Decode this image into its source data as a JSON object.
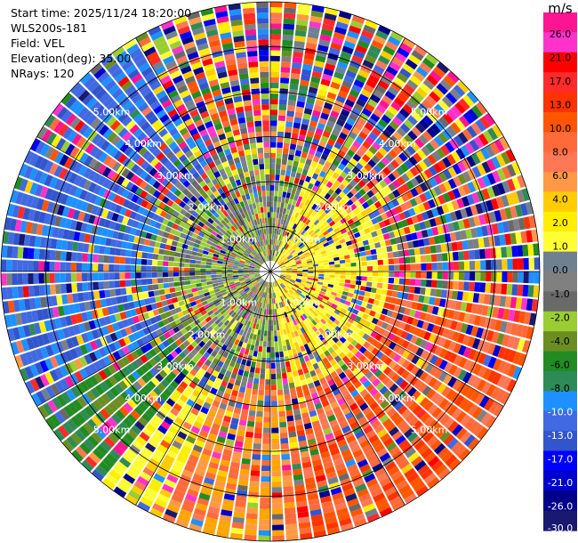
{
  "header": {
    "start_time": "Start time: 2025/11/24 18:20:00",
    "instrument": "WLS200s-181",
    "field": "Field: VEL",
    "elevation": "Elevation(deg): 35.00",
    "nrays": "NRays: 120"
  },
  "chart_data": {
    "type": "heatmap",
    "projection": "polar PPI",
    "field": "VEL",
    "nrays": 120,
    "range_rings_km": [
      1.0,
      2.0,
      3.0,
      4.0,
      5.0,
      6.0
    ],
    "ring_labels": [
      "1.00km",
      "2.00km",
      "3.00km",
      "4.00km",
      "5.00km"
    ],
    "colorbar": {
      "unit": "m/s",
      "tick_labels": [
        "26.0",
        "21.0",
        "17.0",
        "13.0",
        "10.0",
        "8.0",
        "6.0",
        "4.0",
        "2.0",
        "1.0",
        "0.0",
        "-1.0",
        "-2.0",
        "-4.0",
        "-6.0",
        "-8.0",
        "-10.0",
        "-13.0",
        "-17.0",
        "-21.0",
        "-26.0",
        "-30.0"
      ],
      "colors": [
        "#ff1493",
        "#ff33cc",
        "#ff0000",
        "#ff2a2a",
        "#ff3300",
        "#ff5500",
        "#ff6a3a",
        "#ff7755",
        "#ff9944",
        "#ffcc00",
        "#ffee00",
        "#ffff33",
        "#708090",
        "#808080",
        "#696969",
        "#9acd32",
        "#6b8e23",
        "#228b22",
        "#2e8b57",
        "#1e90ff",
        "#4169e1",
        "#3355cc",
        "#0000ff",
        "#0000cd",
        "#00008b",
        "#191970"
      ]
    }
  }
}
